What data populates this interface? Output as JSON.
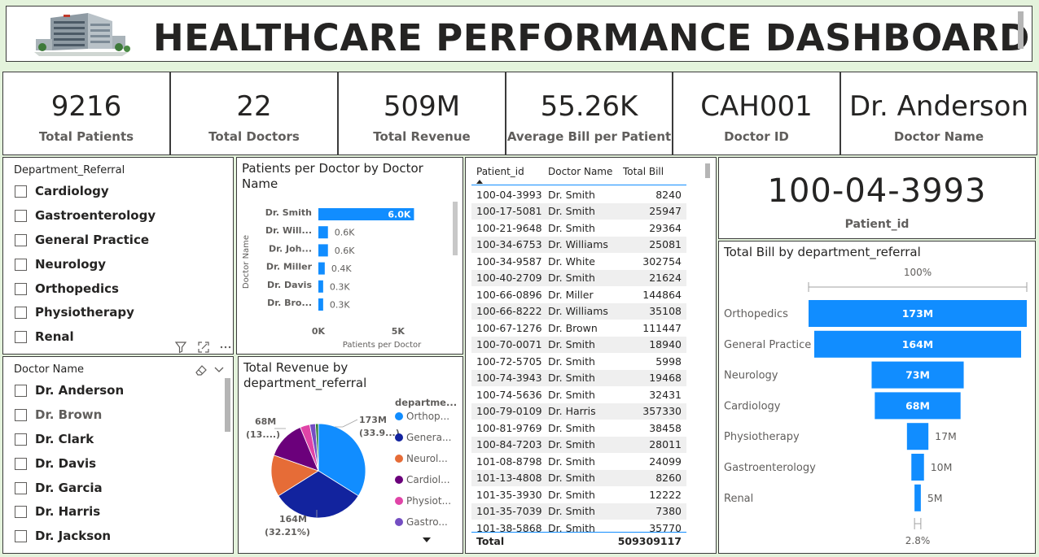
{
  "header": {
    "title": "HEALTHCARE PERFORMANCE DASHBOARD"
  },
  "kpis": [
    {
      "value": "9216",
      "label": "Total Patients"
    },
    {
      "value": "22",
      "label": "Total Doctors"
    },
    {
      "value": "509M",
      "label": "Total Revenue"
    },
    {
      "value": "55.26K",
      "label": "Average Bill per Patient"
    },
    {
      "value": "CAH001",
      "label": "Doctor ID"
    },
    {
      "value": "Dr. Anderson",
      "label": "Doctor Name"
    }
  ],
  "dept_slicer": {
    "title": "Department_Referral",
    "items": [
      "Cardiology",
      "Gastroenterology",
      "General Practice",
      "Neurology",
      "Orthopedics",
      "Physiotherapy",
      "Renal"
    ]
  },
  "doctor_slicer": {
    "title": "Doctor Name",
    "items": [
      "Dr. Anderson",
      "Dr. Brown",
      "Dr. Clark",
      "Dr. Davis",
      "Dr. Garcia",
      "Dr. Harris",
      "Dr. Jackson"
    ]
  },
  "patients_chart": {
    "title": "Patients per Doctor by Doctor Name",
    "chart_data": {
      "type": "bar",
      "orientation": "horizontal",
      "categories": [
        "Dr. Smith",
        "Dr. Will...",
        "Dr. Joh...",
        "Dr. Miller",
        "Dr. Davis",
        "Dr. Bro..."
      ],
      "values": [
        6000,
        600,
        600,
        400,
        300,
        300
      ],
      "data_labels": [
        "6.0K",
        "0.6K",
        "0.6K",
        "0.4K",
        "0.3K",
        "0.3K"
      ],
      "xlabel": "Patients per Doctor",
      "ylabel": "Doctor Name",
      "xticks": [
        "0K",
        "5K"
      ],
      "xlim": [
        0,
        7000
      ],
      "color": "#118dff"
    }
  },
  "revenue_chart": {
    "title": "Total Revenue by department_referral",
    "legend_title": "departme...",
    "chart_data": {
      "type": "pie",
      "categories": [
        "Orthopedics",
        "General Practice",
        "Neurology",
        "Cardiology",
        "Physiotherapy",
        "Gastroenterology",
        "Renal"
      ],
      "values": [
        173,
        164,
        73,
        68,
        17,
        10,
        5
      ],
      "legend_labels": [
        "Orthop...",
        "Genera...",
        "Neurol...",
        "Cardiol...",
        "Physiot...",
        "Gastro..."
      ],
      "colors": [
        "#118dff",
        "#12239e",
        "#e66c37",
        "#6b007b",
        "#e044a7",
        "#744ec2",
        "#2e7d32"
      ],
      "callouts": [
        {
          "value": "173M",
          "pct": "(33.9...)"
        },
        {
          "value": "164M",
          "pct": "(32.21%)"
        },
        {
          "value": "68M",
          "pct": "(13....)"
        }
      ]
    }
  },
  "table": {
    "headers": [
      "Patient_id",
      "Doctor Name",
      "Total Bill"
    ],
    "rows": [
      [
        "100-04-3993",
        "Dr. Smith",
        "8240"
      ],
      [
        "100-17-5081",
        "Dr. Smith",
        "25947"
      ],
      [
        "100-21-9648",
        "Dr. Smith",
        "29364"
      ],
      [
        "100-34-6753",
        "Dr. Williams",
        "25081"
      ],
      [
        "100-34-9587",
        "Dr. White",
        "302754"
      ],
      [
        "100-40-2709",
        "Dr. Smith",
        "21624"
      ],
      [
        "100-66-0896",
        "Dr. Miller",
        "144864"
      ],
      [
        "100-66-8222",
        "Dr. Williams",
        "35108"
      ],
      [
        "100-67-1276",
        "Dr. Brown",
        "111447"
      ],
      [
        "100-70-0071",
        "Dr. Smith",
        "18940"
      ],
      [
        "100-72-5705",
        "Dr. Smith",
        "5998"
      ],
      [
        "100-74-3943",
        "Dr. Smith",
        "19468"
      ],
      [
        "100-74-5636",
        "Dr. Smith",
        "32431"
      ],
      [
        "100-79-0109",
        "Dr. Harris",
        "357330"
      ],
      [
        "100-81-9769",
        "Dr. Smith",
        "38458"
      ],
      [
        "100-84-7203",
        "Dr. Smith",
        "28011"
      ],
      [
        "101-08-8798",
        "Dr. Smith",
        "24099"
      ],
      [
        "101-13-4808",
        "Dr. Smith",
        "8260"
      ],
      [
        "101-35-3930",
        "Dr. Smith",
        "12222"
      ],
      [
        "101-35-7039",
        "Dr. Smith",
        "7380"
      ],
      [
        "101-38-5868",
        "Dr. Smith",
        "35770"
      ]
    ],
    "total_label": "Total",
    "total_value": "509309117"
  },
  "patient_card": {
    "value": "100-04-3993",
    "label": "Patient_id"
  },
  "funnel_chart": {
    "title": "Total Bill by department_referral",
    "top_pct": "100%",
    "bottom_pct": "2.8%",
    "chart_data": {
      "type": "funnel",
      "categories": [
        "Orthopedics",
        "General Practice",
        "Neurology",
        "Cardiology",
        "Physiotherapy",
        "Gastroenterology",
        "Renal"
      ],
      "values": [
        173,
        164,
        73,
        68,
        17,
        10,
        5
      ],
      "data_labels": [
        "173M",
        "164M",
        "73M",
        "68M",
        "17M",
        "10M",
        "5M"
      ],
      "color": "#118dff"
    }
  }
}
